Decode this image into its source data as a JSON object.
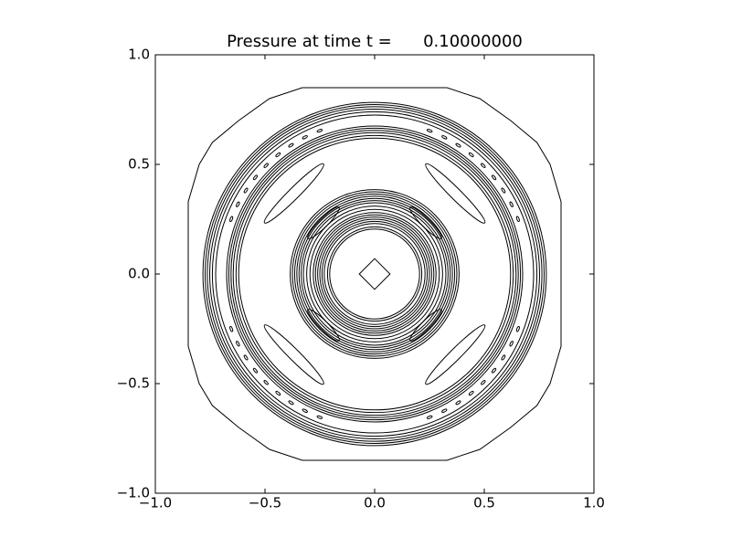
{
  "chart_data": {
    "type": "contour",
    "title": "Pressure at time t =      0.10000000",
    "xlim": [
      -1.0,
      1.0
    ],
    "ylim": [
      -1.0,
      1.0
    ],
    "xticks": [
      {
        "value": -1.0,
        "label": "−1.0"
      },
      {
        "value": -0.5,
        "label": "−0.5"
      },
      {
        "value": 0,
        "label": "0.0"
      },
      0.5,
      {
        "value": 1.0,
        "label": "1.0"
      }
    ],
    "yticks": [
      {
        "value": -1.0,
        "label": "−1.0"
      },
      {
        "value": -0.5,
        "label": "−0.5"
      },
      {
        "value": 0,
        "label": "0.0"
      },
      0.5,
      {
        "value": 1.0,
        "label": "1.0"
      }
    ],
    "color": "#000000"
  }
}
